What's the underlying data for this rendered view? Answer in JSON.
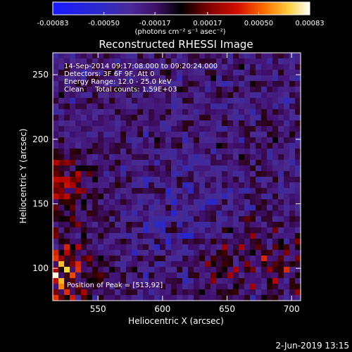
{
  "chart_data": {
    "type": "heatmap",
    "title": "Reconstructed RHESSI Image",
    "xlabel": "Heliocentric X (arcsec)",
    "ylabel": "Heliocentric Y (arcsec)",
    "xlim": [
      515,
      707
    ],
    "ylim": [
      75,
      267
    ],
    "xticks": [
      550,
      600,
      650,
      700
    ],
    "yticks": [
      100,
      150,
      200,
      250
    ],
    "colorbar": {
      "ticks": [
        "-0.00083",
        "-0.00050",
        "-0.00017",
        "0.00017",
        "0.00050",
        "0.00083"
      ],
      "range": [
        -0.00083,
        0.00083
      ],
      "units_label": "(photons cm⁻² s⁻¹ asec⁻²)",
      "colormap": [
        "#1a1aff",
        "#2626d0",
        "#3a2aa0",
        "#4a2a90",
        "#401070",
        "#2a0010",
        "#000000",
        "#5a0000",
        "#b40000",
        "#e83a00",
        "#ff9a00",
        "#ffe040",
        "#ffffff"
      ]
    },
    "annotations": [
      "14-Sep-2014 09:17:08.000 to 09:20:24.000",
      "Detectors: 3F 6F 9F, Att 0",
      "Energy Range: 12.0 - 25.0 keV",
      "Clean     Total counts: 1.59E+03",
      "Position of Peak = [513,92]"
    ],
    "peak": [
      513,
      92
    ],
    "grid": false
  },
  "footer_date": "2-Jun-2019 13:15"
}
